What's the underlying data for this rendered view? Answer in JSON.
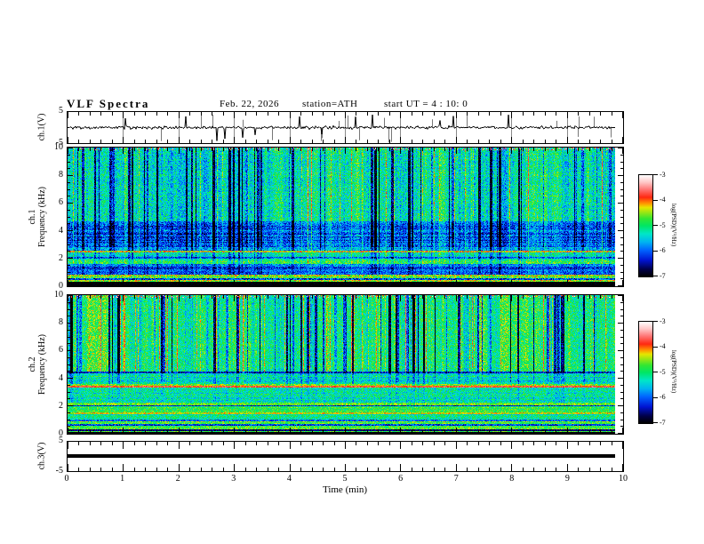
{
  "header": {
    "title": "VLF Spectra",
    "date": "Feb. 22, 2026",
    "station": "station=ATH",
    "start_ut": "start UT =  4 : 10: 0"
  },
  "axes": {
    "x": {
      "label": "Time (min)",
      "ticks": [
        "0",
        "1",
        "2",
        "3",
        "4",
        "5",
        "6",
        "7",
        "8",
        "9",
        "10"
      ],
      "range": [
        0,
        10
      ],
      "minor_per_major": 5
    },
    "spec_y": {
      "ticks": [
        "10",
        "8",
        "6",
        "4",
        "2",
        "0"
      ],
      "range": [
        0,
        10
      ]
    },
    "wave_y": {
      "ticks": [
        "5",
        "-5"
      ],
      "range": [
        -5,
        5
      ]
    }
  },
  "panels": [
    {
      "id": "ch1-wave",
      "ylabel_lines": [
        "ch.1(V)"
      ],
      "type": "waveform"
    },
    {
      "id": "ch1-spec",
      "ylabel_lines": [
        "ch.1",
        "Frequency (kHz)"
      ],
      "type": "spectrogram"
    },
    {
      "id": "ch2-spec",
      "ylabel_lines": [
        "ch.2",
        "Frequency (kHz)"
      ],
      "type": "spectrogram"
    },
    {
      "id": "ch3-wave",
      "ylabel_lines": [
        "ch.3(V)"
      ],
      "type": "flatline"
    }
  ],
  "colorbar": {
    "label": "log(PSD)(V²/Hz)",
    "ticks": [
      "-3",
      "-4",
      "-5",
      "-6",
      "-7"
    ],
    "range": [
      -7,
      -3
    ],
    "gradient_stops": [
      {
        "t": 0.0,
        "c": "#000000"
      },
      {
        "t": 0.07,
        "c": "#000048"
      },
      {
        "t": 0.16,
        "c": "#0014d2"
      },
      {
        "t": 0.26,
        "c": "#0064ff"
      },
      {
        "t": 0.34,
        "c": "#00b4f0"
      },
      {
        "t": 0.42,
        "c": "#00e6c8"
      },
      {
        "t": 0.5,
        "c": "#00e664"
      },
      {
        "t": 0.57,
        "c": "#32e632"
      },
      {
        "t": 0.63,
        "c": "#96e614"
      },
      {
        "t": 0.68,
        "c": "#e6e600"
      },
      {
        "t": 0.72,
        "c": "#ff9600"
      },
      {
        "t": 0.78,
        "c": "#ff2810"
      },
      {
        "t": 0.86,
        "c": "#ff7878"
      },
      {
        "t": 0.93,
        "c": "#ffc8c8"
      },
      {
        "t": 1.0,
        "c": "#ffffff"
      }
    ]
  },
  "chart_data": [
    {
      "type": "line",
      "panel": "ch.1(V)",
      "xlabel": "Time (min)",
      "xlim": [
        0,
        10
      ],
      "ylim": [
        -5,
        5
      ],
      "description": "Noisy voltage waveform fluctuating around 0 V with frequent narrow spikes toward +5 and -5 V; trace ends near 9.8 min."
    },
    {
      "type": "heatmap",
      "panel": "ch.1 spectrogram",
      "ylabel": "Frequency (kHz)",
      "xlim": [
        0,
        10
      ],
      "ylim": [
        0,
        10
      ],
      "zlabel": "log(PSD)(V²/Hz)",
      "zlim": [
        -7,
        -3
      ],
      "features": [
        "green/cyan background above ~4.7 kHz crossed by many dark-blue vertical dropout streaks",
        "darker blue band between ~2.8 and 4.7 kHz with horizontal striping",
        "bright green band near 1.6-2.0 kHz",
        "olive/yellow speckled bands near 0.3-0.8 kHz",
        "black band below ~0.3 kHz",
        "scattered red/orange hot pixels along the very top edge"
      ],
      "bands": [
        {
          "f0": 0.0,
          "f1": 0.28,
          "v": -7.0,
          "n": 0.15,
          "sw": 0.0,
          "rw": 0.2
        },
        {
          "f0": 0.28,
          "f1": 0.42,
          "v": -4.6,
          "n": 0.5,
          "sw": 0.1,
          "rw": 1.2
        },
        {
          "f0": 0.42,
          "f1": 0.58,
          "v": -6.2,
          "n": 0.6,
          "sw": 0.1,
          "rw": 1.5
        },
        {
          "f0": 0.58,
          "f1": 0.8,
          "v": -4.7,
          "n": 0.6,
          "sw": 0.1,
          "rw": 1.2
        },
        {
          "f0": 0.8,
          "f1": 1.4,
          "v": -6.1,
          "n": 0.45,
          "sw": 0.3,
          "rw": 0.8
        },
        {
          "f0": 1.4,
          "f1": 1.6,
          "v": -5.7,
          "n": 0.5,
          "sw": 0.3,
          "rw": 0.8
        },
        {
          "f0": 1.6,
          "f1": 1.95,
          "v": -5.0,
          "n": 0.5,
          "sw": 0.4,
          "rw": 0.8
        },
        {
          "f0": 1.95,
          "f1": 2.1,
          "v": -5.9,
          "n": 0.5,
          "sw": 0.4,
          "rw": 1.0
        },
        {
          "f0": 2.1,
          "f1": 2.45,
          "v": -5.3,
          "n": 0.5,
          "sw": 0.5,
          "rw": 0.8
        },
        {
          "f0": 2.45,
          "f1": 2.55,
          "v": -4.3,
          "n": 0.6,
          "sw": 0.2,
          "rw": 0.5
        },
        {
          "f0": 2.55,
          "f1": 2.8,
          "v": -5.6,
          "n": 0.5,
          "sw": 0.6,
          "rw": 0.8
        },
        {
          "f0": 2.8,
          "f1": 4.7,
          "v": -6.0,
          "n": 0.5,
          "sw": 0.8,
          "rw": 1.0
        },
        {
          "f0": 4.7,
          "f1": 10.0,
          "v": -5.25,
          "n": 0.55,
          "sw": 1.0,
          "rw": 0.35
        }
      ]
    },
    {
      "type": "heatmap",
      "panel": "ch.2 spectrogram",
      "ylabel": "Frequency (kHz)",
      "xlim": [
        0,
        10
      ],
      "ylim": [
        0,
        10
      ],
      "zlabel": "log(PSD)(V²/Hz)",
      "zlim": [
        -7,
        -3
      ],
      "features": [
        "green background above ~4.5 kHz with clustered dark-blue vertical dropout streaks",
        "strong red/orange horizontal PSD line near 3.4 kHz",
        "yellow-green bright bands between ~1.4 and 2.2 kHz",
        "thin dark horizontal lines near 0.9, 2.0 and 4.4 kHz",
        "black band below ~0.3 kHz"
      ],
      "bands": [
        {
          "f0": 0.0,
          "f1": 0.1,
          "v": -7.0,
          "n": 0.1,
          "sw": 0.0,
          "rw": 0.2
        },
        {
          "f0": 0.1,
          "f1": 0.18,
          "v": -4.9,
          "n": 0.4,
          "sw": 0.0,
          "rw": 0.5
        },
        {
          "f0": 0.18,
          "f1": 0.3,
          "v": -6.8,
          "n": 0.3,
          "sw": 0.0,
          "rw": 0.5
        },
        {
          "f0": 0.3,
          "f1": 0.55,
          "v": -4.8,
          "n": 0.45,
          "sw": 0.0,
          "rw": 1.0
        },
        {
          "f0": 0.55,
          "f1": 0.65,
          "v": -6.0,
          "n": 0.5,
          "sw": 0.0,
          "rw": 1.0
        },
        {
          "f0": 0.65,
          "f1": 0.9,
          "v": -4.8,
          "n": 0.45,
          "sw": 0.0,
          "rw": 0.8
        },
        {
          "f0": 0.9,
          "f1": 1.0,
          "v": -6.2,
          "n": 0.5,
          "sw": 0.0,
          "rw": 1.0
        },
        {
          "f0": 1.0,
          "f1": 1.4,
          "v": -5.1,
          "n": 0.45,
          "sw": 0.05,
          "rw": 0.8
        },
        {
          "f0": 1.4,
          "f1": 1.5,
          "v": -4.4,
          "n": 0.4,
          "sw": 0.0,
          "rw": 0.6
        },
        {
          "f0": 1.5,
          "f1": 1.95,
          "v": -4.9,
          "n": 0.4,
          "sw": 0.05,
          "rw": 0.6
        },
        {
          "f0": 1.95,
          "f1": 2.05,
          "v": -6.3,
          "n": 0.4,
          "sw": 0.0,
          "rw": 0.8
        },
        {
          "f0": 2.05,
          "f1": 2.25,
          "v": -4.6,
          "n": 0.45,
          "sw": 0.0,
          "rw": 0.6
        },
        {
          "f0": 2.25,
          "f1": 3.3,
          "v": -5.2,
          "n": 0.5,
          "sw": 0.15,
          "rw": 0.7
        },
        {
          "f0": 3.3,
          "f1": 3.45,
          "v": -3.8,
          "n": 0.35,
          "sw": 0.0,
          "rw": 0.5
        },
        {
          "f0": 3.45,
          "f1": 3.6,
          "v": -4.6,
          "n": 0.5,
          "sw": 0.1,
          "rw": 0.7
        },
        {
          "f0": 3.6,
          "f1": 4.35,
          "v": -5.3,
          "n": 0.5,
          "sw": 0.3,
          "rw": 0.9
        },
        {
          "f0": 4.35,
          "f1": 4.5,
          "v": -6.2,
          "n": 0.5,
          "sw": 0.4,
          "rw": 0.8
        },
        {
          "f0": 4.5,
          "f1": 10.0,
          "v": -5.05,
          "n": 0.5,
          "sw": 1.0,
          "rw": 0.3
        }
      ]
    },
    {
      "type": "line",
      "panel": "ch.3(V)",
      "xlim": [
        0,
        10
      ],
      "ylim": [
        -5,
        5
      ],
      "description": "Constant flat trace at 0 V drawn as a thick black horizontal line ending near 9.8 min."
    }
  ]
}
